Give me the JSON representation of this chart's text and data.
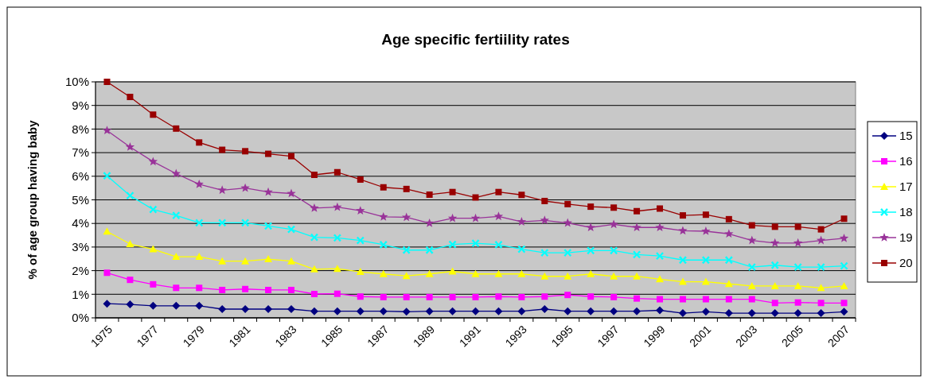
{
  "chart_data": {
    "type": "line",
    "title": "Age specific fertiility rates",
    "ylabel": "% of age group having baby",
    "categories": [
      "1975",
      null,
      "1977",
      null,
      "1979",
      null,
      "1981",
      null,
      "1983",
      null,
      "1985",
      null,
      "1987",
      null,
      "1989",
      null,
      "1991",
      null,
      "1993",
      null,
      "1995",
      null,
      "1997",
      null,
      "1999",
      null,
      "2001",
      null,
      "2003",
      null,
      "2005",
      null,
      "2007"
    ],
    "ylim": [
      0,
      10
    ],
    "yticks": [
      {
        "value": 0,
        "label": "0%"
      },
      {
        "value": 1,
        "label": "1%"
      },
      {
        "value": 2,
        "label": "2%"
      },
      {
        "value": 3,
        "label": "3%"
      },
      {
        "value": 4,
        "label": "4%"
      },
      {
        "value": 5,
        "label": "5%"
      },
      {
        "value": 6,
        "label": "6%"
      },
      {
        "value": 7,
        "label": "7%"
      },
      {
        "value": 8,
        "label": "8%"
      },
      {
        "value": 9,
        "label": "9%"
      },
      {
        "value": 10,
        "label": "10%"
      }
    ],
    "grid": "y",
    "legend": "right",
    "series": [
      {
        "name": "15",
        "color": "#000080",
        "marker": "diamond",
        "values": [
          0.6,
          0.57,
          0.51,
          0.51,
          0.51,
          0.37,
          0.37,
          0.37,
          0.37,
          0.28,
          0.28,
          0.28,
          0.28,
          0.26,
          0.28,
          0.28,
          0.28,
          0.28,
          0.28,
          0.37,
          0.28,
          0.28,
          0.28,
          0.28,
          0.32,
          0.2,
          0.26,
          0.2,
          0.2,
          0.2,
          0.2,
          0.2,
          0.26
        ]
      },
      {
        "name": "16",
        "color": "#ff00ff",
        "marker": "square",
        "values": [
          1.91,
          1.61,
          1.42,
          1.27,
          1.27,
          1.18,
          1.22,
          1.18,
          1.18,
          1.01,
          1.02,
          0.9,
          0.88,
          0.88,
          0.88,
          0.88,
          0.88,
          0.9,
          0.88,
          0.9,
          0.97,
          0.9,
          0.88,
          0.82,
          0.79,
          0.79,
          0.79,
          0.79,
          0.79,
          0.63,
          0.65,
          0.63,
          0.63
        ]
      },
      {
        "name": "17",
        "color": "#ffff00",
        "marker": "triangle",
        "values": [
          3.66,
          3.13,
          2.91,
          2.59,
          2.59,
          2.4,
          2.4,
          2.49,
          2.4,
          2.06,
          2.08,
          1.95,
          1.86,
          1.78,
          1.86,
          1.97,
          1.86,
          1.86,
          1.86,
          1.76,
          1.76,
          1.86,
          1.76,
          1.76,
          1.64,
          1.53,
          1.53,
          1.44,
          1.35,
          1.35,
          1.35,
          1.27,
          1.35
        ]
      },
      {
        "name": "18",
        "color": "#00ffff",
        "marker": "cross",
        "values": [
          6.02,
          5.18,
          4.59,
          4.34,
          4.03,
          4.03,
          4.03,
          3.89,
          3.75,
          3.41,
          3.39,
          3.28,
          3.1,
          2.87,
          2.87,
          3.11,
          3.16,
          3.1,
          2.91,
          2.76,
          2.76,
          2.85,
          2.85,
          2.68,
          2.62,
          2.45,
          2.45,
          2.45,
          2.15,
          2.23,
          2.15,
          2.15,
          2.2
        ]
      },
      {
        "name": "19",
        "color": "#993399",
        "marker": "star",
        "values": [
          7.94,
          7.24,
          6.62,
          6.11,
          5.66,
          5.41,
          5.5,
          5.33,
          5.27,
          4.65,
          4.69,
          4.54,
          4.28,
          4.26,
          4.01,
          4.22,
          4.22,
          4.3,
          4.07,
          4.13,
          4.02,
          3.83,
          3.96,
          3.83,
          3.83,
          3.69,
          3.67,
          3.56,
          3.28,
          3.17,
          3.17,
          3.28,
          3.37
        ]
      },
      {
        "name": "20",
        "color": "#990000",
        "marker": "square",
        "values": [
          10.0,
          9.36,
          8.61,
          8.02,
          7.43,
          7.12,
          7.06,
          6.95,
          6.85,
          6.06,
          6.17,
          5.86,
          5.53,
          5.46,
          5.22,
          5.33,
          5.1,
          5.33,
          5.21,
          4.95,
          4.82,
          4.71,
          4.67,
          4.52,
          4.63,
          4.34,
          4.37,
          4.18,
          3.92,
          3.86,
          3.86,
          3.75,
          4.2
        ]
      }
    ]
  }
}
